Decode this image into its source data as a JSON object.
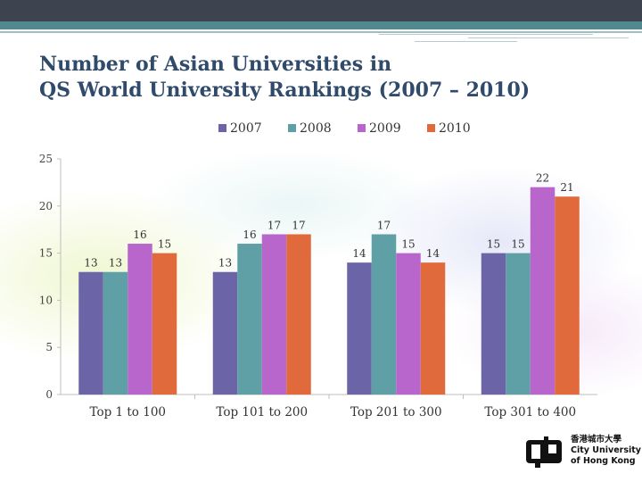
{
  "slide": {
    "title_line1": "Number of Asian Universities in",
    "title_line2": "QS World University Rankings (2007 – 2010)",
    "logo": {
      "chinese_name": "香港城市大學",
      "english_line1": "City University",
      "english_line2": "of Hong Kong"
    }
  },
  "chart_data": {
    "type": "bar",
    "categories": [
      "Top 1 to 100",
      "Top 101 to 200",
      "Top 201 to 300",
      "Top 301 to 400"
    ],
    "series": [
      {
        "name": "2007",
        "values": [
          13,
          13,
          14,
          15
        ],
        "color": "#6b65a8"
      },
      {
        "name": "2008",
        "values": [
          13,
          16,
          17,
          15
        ],
        "color": "#5fa0a6"
      },
      {
        "name": "2009",
        "values": [
          16,
          17,
          15,
          22
        ],
        "color": "#b866cc"
      },
      {
        "name": "2010",
        "values": [
          15,
          17,
          14,
          21
        ],
        "color": "#e06a3c"
      }
    ],
    "ylim": [
      0,
      25
    ],
    "yticks": [
      0,
      5,
      10,
      15,
      20,
      25
    ],
    "grid": false,
    "legend": "top",
    "data_labels": true
  }
}
